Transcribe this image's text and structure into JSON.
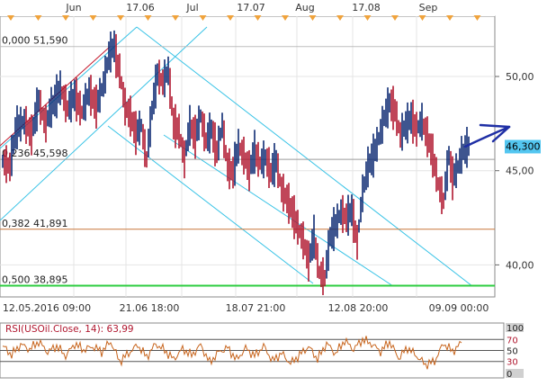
{
  "chart_data": [
    {
      "type": "line",
      "name": "main-price-panel",
      "x_top_labels": [
        "Jun",
        "17.06",
        "Jul",
        "17.07",
        "Aug",
        "17.08",
        "Sep"
      ],
      "x_bottom_labels": [
        "12.05.2016 09:00",
        "21.06 18:00",
        "18.07 21:00",
        "12.08 20:00",
        "09.09 00:00"
      ],
      "y_tick_labels": [
        "50,00",
        "45,00",
        "40,00"
      ],
      "y_ticks": [
        50,
        45,
        40
      ],
      "ylim": [
        38.3,
        53.2
      ],
      "current_price_label": "46,300",
      "current_price": 46.3,
      "fibonacci_levels": [
        {
          "label": "0,000 51,590",
          "value": 51.59,
          "color": "#bdbdbd"
        },
        {
          "label": "0,236 45,598",
          "value": 45.598,
          "color": "#9a9a9a"
        },
        {
          "label": "0,382 41,891",
          "value": 41.891,
          "color": "#c8763a"
        },
        {
          "label": "0,500 38,895",
          "value": 38.895,
          "color": "#2ecc40"
        }
      ],
      "price_path": [
        [
          0,
          45.5
        ],
        [
          8,
          45.2
        ],
        [
          15,
          47.3
        ],
        [
          22,
          47.6
        ],
        [
          30,
          46.9
        ],
        [
          38,
          48.7
        ],
        [
          45,
          47.5
        ],
        [
          52,
          48.5
        ],
        [
          60,
          49.4
        ],
        [
          68,
          48.3
        ],
        [
          76,
          49.0
        ],
        [
          84,
          48.1
        ],
        [
          92,
          49.2
        ],
        [
          100,
          48.4
        ],
        [
          108,
          49.6
        ],
        [
          114,
          51.1
        ],
        [
          119,
          51.6
        ],
        [
          124,
          50.3
        ],
        [
          130,
          48.4
        ],
        [
          136,
          47.9
        ],
        [
          142,
          47.0
        ],
        [
          148,
          47.4
        ],
        [
          154,
          45.6
        ],
        [
          160,
          48.2
        ],
        [
          166,
          50.1
        ],
        [
          172,
          49.7
        ],
        [
          178,
          50.3
        ],
        [
          184,
          47.5
        ],
        [
          190,
          47.1
        ],
        [
          196,
          45.6
        ],
        [
          202,
          47.4
        ],
        [
          208,
          46.8
        ],
        [
          214,
          47.9
        ],
        [
          220,
          46.6
        ],
        [
          226,
          47.2
        ],
        [
          232,
          46.0
        ],
        [
          238,
          47.4
        ],
        [
          244,
          45.2
        ],
        [
          250,
          44.9
        ],
        [
          256,
          46.3
        ],
        [
          262,
          45.8
        ],
        [
          268,
          45.0
        ],
        [
          274,
          46.0
        ],
        [
          280,
          45.4
        ],
        [
          286,
          45.7
        ],
        [
          292,
          44.9
        ],
        [
          298,
          45.5
        ],
        [
          304,
          44.0
        ],
        [
          310,
          43.5
        ],
        [
          316,
          42.8
        ],
        [
          322,
          42.0
        ],
        [
          328,
          41.3
        ],
        [
          334,
          40.2
        ],
        [
          340,
          41.5
        ],
        [
          346,
          39.6
        ],
        [
          352,
          39.3
        ],
        [
          358,
          41.5
        ],
        [
          364,
          42.1
        ],
        [
          370,
          42.8
        ],
        [
          376,
          42.5
        ],
        [
          382,
          42.9
        ],
        [
          388,
          41.2
        ],
        [
          394,
          43.8
        ],
        [
          400,
          45.2
        ],
        [
          406,
          45.8
        ],
        [
          412,
          46.7
        ],
        [
          418,
          47.8
        ],
        [
          424,
          48.6
        ],
        [
          430,
          48.2
        ],
        [
          436,
          46.9
        ],
        [
          442,
          47.4
        ],
        [
          448,
          47.8
        ],
        [
          454,
          47.2
        ],
        [
          460,
          47.6
        ],
        [
          466,
          46.8
        ],
        [
          472,
          45.8
        ],
        [
          478,
          44.3
        ],
        [
          484,
          43.4
        ],
        [
          490,
          45.8
        ],
        [
          494,
          44.6
        ],
        [
          500,
          45.2
        ],
        [
          505,
          46.0
        ],
        [
          510,
          46.3
        ]
      ]
    },
    {
      "type": "line",
      "name": "rsi-panel",
      "title": "RSI(USOil.Close, 14): 63,99",
      "y_tick_labels": [
        "100",
        "70",
        "50",
        "30",
        "0"
      ],
      "y_ticks": [
        100,
        70,
        50,
        30,
        0
      ],
      "ylim": [
        0,
        100
      ],
      "levels": [
        70,
        50,
        30
      ],
      "last_value": 63.99,
      "rsi_path": [
        [
          0,
          58
        ],
        [
          10,
          42
        ],
        [
          20,
          61
        ],
        [
          30,
          52
        ],
        [
          40,
          66
        ],
        [
          50,
          47
        ],
        [
          60,
          58
        ],
        [
          70,
          40
        ],
        [
          80,
          62
        ],
        [
          90,
          51
        ],
        [
          100,
          57
        ],
        [
          110,
          48
        ],
        [
          120,
          66
        ],
        [
          130,
          30
        ],
        [
          140,
          45
        ],
        [
          150,
          60
        ],
        [
          160,
          38
        ],
        [
          170,
          62
        ],
        [
          180,
          50
        ],
        [
          190,
          34
        ],
        [
          200,
          53
        ],
        [
          210,
          41
        ],
        [
          220,
          60
        ],
        [
          230,
          28
        ],
        [
          240,
          47
        ],
        [
          250,
          55
        ],
        [
          260,
          33
        ],
        [
          270,
          54
        ],
        [
          280,
          40
        ],
        [
          290,
          58
        ],
        [
          300,
          31
        ],
        [
          310,
          45
        ],
        [
          320,
          26
        ],
        [
          330,
          42
        ],
        [
          340,
          57
        ],
        [
          350,
          34
        ],
        [
          360,
          63
        ],
        [
          370,
          44
        ],
        [
          380,
          68
        ],
        [
          390,
          52
        ],
        [
          400,
          70
        ],
        [
          410,
          62
        ],
        [
          420,
          48
        ],
        [
          430,
          66
        ],
        [
          440,
          36
        ],
        [
          450,
          55
        ],
        [
          460,
          40
        ],
        [
          470,
          24
        ],
        [
          480,
          30
        ],
        [
          490,
          63
        ],
        [
          500,
          48
        ],
        [
          510,
          64
        ]
      ]
    }
  ],
  "colors": {
    "panel_border": "#8a8a8a",
    "grid": "#e4e4e4",
    "channel_lines": "#39c3e6",
    "regression_line": "#c4192c",
    "price_up": "#0d2a73",
    "price_down": "#b0172f",
    "rsi_line": "#c7641c",
    "rsi_levels": "#555555",
    "marker_triangle": "#f0a33c",
    "current_price_box": "#53c6f0",
    "arrow": "#1f2fa5"
  }
}
